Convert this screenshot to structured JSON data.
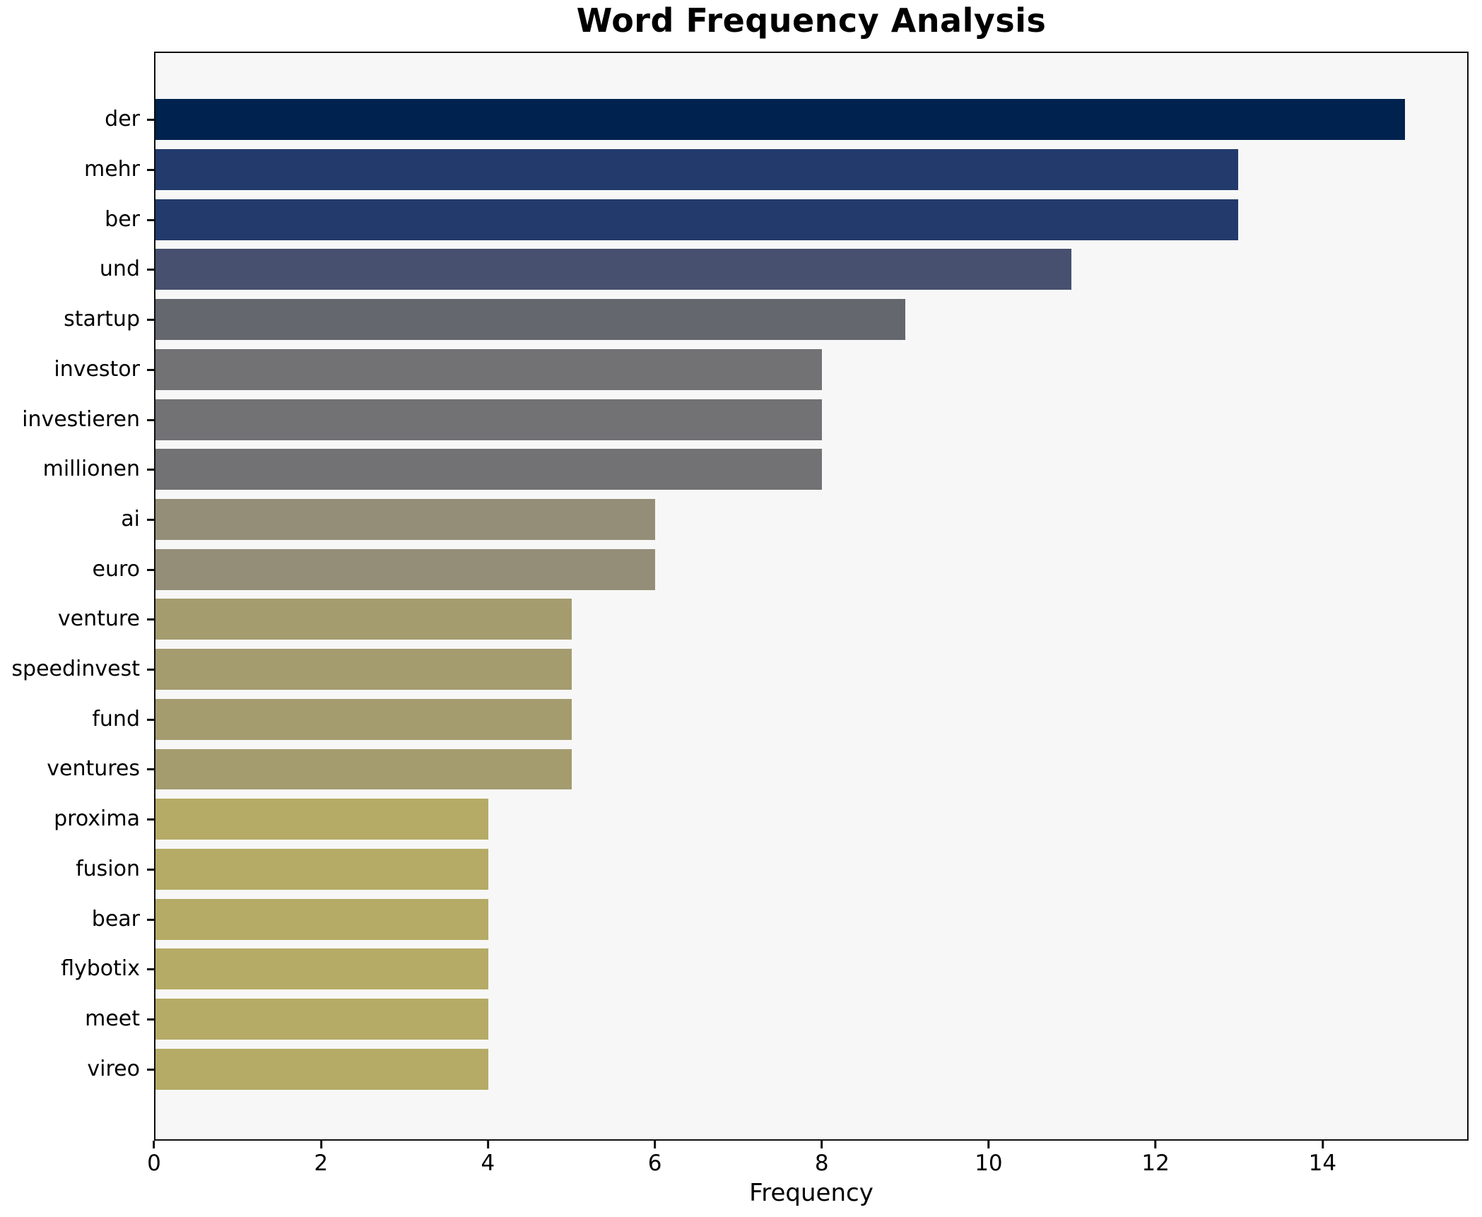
{
  "figure": {
    "background": "#ffffff",
    "plot_background": "#f7f7f7",
    "spine_color": "#0d0d0d",
    "text_color": "#000000"
  },
  "chart_data": {
    "type": "bar",
    "orientation": "horizontal",
    "title": "Word Frequency Analysis",
    "xlabel": "Frequency",
    "ylabel": "",
    "categories": [
      "der",
      "mehr",
      "ber",
      "und",
      "startup",
      "investor",
      "investieren",
      "millionen",
      "ai",
      "euro",
      "venture",
      "speedinvest",
      "fund",
      "ventures",
      "proxima",
      "fusion",
      "bear",
      "flybotix",
      "meet",
      "vireo"
    ],
    "values": [
      15,
      13,
      13,
      11,
      9,
      8,
      8,
      8,
      6,
      6,
      5,
      5,
      5,
      5,
      4,
      4,
      4,
      4,
      4,
      4
    ],
    "bar_colors": [
      "#00224e",
      "#233b6c",
      "#233b6c",
      "#47506e",
      "#65676f",
      "#727275",
      "#727275",
      "#727275",
      "#948e78",
      "#948e78",
      "#a49c6f",
      "#a49c6f",
      "#a49c6f",
      "#a49c6f",
      "#b5ab66",
      "#b5ab66",
      "#b5ab66",
      "#b5ab66",
      "#b5ab66",
      "#b5ab66"
    ],
    "xlim": [
      0,
      15.75
    ],
    "xticks": [
      0,
      2,
      4,
      6,
      8,
      10,
      12,
      14
    ],
    "grid": false,
    "legend_position": "none"
  }
}
